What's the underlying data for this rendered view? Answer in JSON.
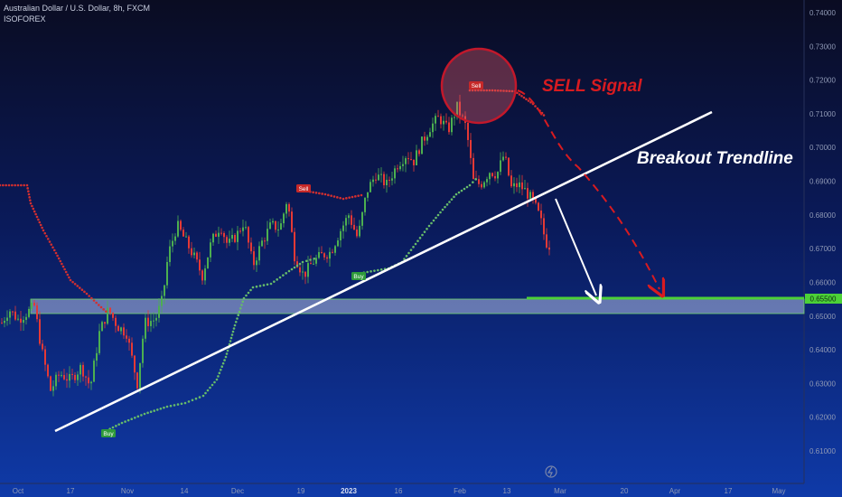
{
  "header": {
    "title": "Australian Dollar / U.S. Dollar, 8h, FXCM",
    "indicator": "ISOFOREX"
  },
  "annotations": {
    "sell_signal": "SELL Signal",
    "breakout": "Breakout Trendline",
    "sell_tag_1": "Sell",
    "sell_tag_2": "Sell",
    "buy_tag_1": "Buy",
    "buy_tag_2": "Buy",
    "price_badge": "0.65500"
  },
  "colors": {
    "background_top": "#0a0c22",
    "background_bottom": "#0f3aa8",
    "bull": "#4caf50",
    "bear": "#e53935",
    "trail_red": "#d32f2f",
    "trail_green": "#66bb6a",
    "zone": "#b0bde6",
    "target_line": "#4cd137",
    "annotation_red": "#d81b20"
  },
  "chart_data": {
    "type": "candlestick",
    "symbol": "AUDUSD",
    "timeframe": "8h",
    "y_ticks": [
      "0.74000",
      "0.73000",
      "0.72000",
      "0.71000",
      "0.70000",
      "0.69000",
      "0.68000",
      "0.67000",
      "0.66000",
      "0.65000",
      "0.64000",
      "0.63000",
      "0.62000",
      "0.61000"
    ],
    "x_ticks": [
      "Oct",
      "17",
      "Nov",
      "14",
      "Dec",
      "19",
      "2023",
      "16",
      "Feb",
      "13",
      "Mar",
      "20",
      "Apr",
      "17",
      "May"
    ],
    "ylim": [
      0.605,
      0.744
    ],
    "key_prices": {
      "support_zone_top": 0.6545,
      "support_zone_bottom": 0.6505,
      "target": 0.655,
      "last_price": 0.6705
    },
    "close_path": [
      [
        "Oct",
        0.652
      ],
      [
        "17",
        0.628
      ],
      [
        "Nov",
        0.652
      ],
      [
        "14",
        0.672
      ],
      [
        "Dec",
        0.678
      ],
      [
        "19",
        0.671
      ],
      [
        "2023",
        0.684
      ],
      [
        "16",
        0.698
      ],
      [
        "Feb",
        0.712
      ],
      [
        "13",
        0.694
      ],
      [
        "Mar",
        0.671
      ]
    ]
  }
}
